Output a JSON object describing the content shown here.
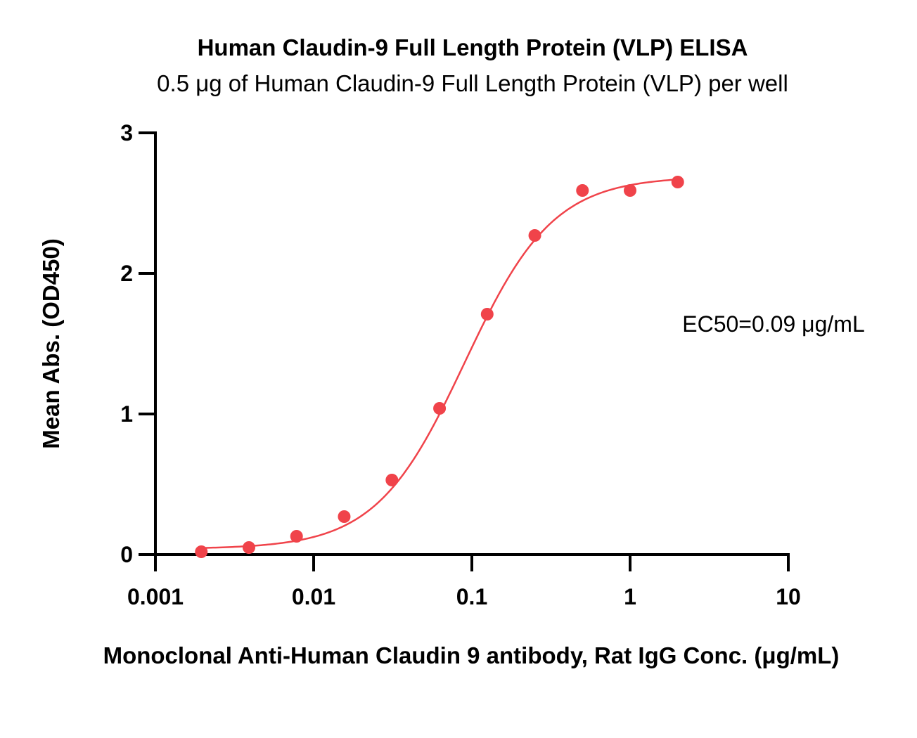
{
  "chart_data": {
    "type": "scatter",
    "title": "Human Claudin-9 Full Length Protein (VLP) ELISA",
    "subtitle": "0.5 μg of Human Claudin-9 Full Length Protein (VLP) per well",
    "xlabel": "Monoclonal Anti-Human Claudin 9 antibody, Rat IgG Conc. (μg/mL)",
    "ylabel": "Mean Abs. (OD450)",
    "xscale": "log",
    "xlim": [
      0.001,
      10
    ],
    "ylim": [
      0,
      3
    ],
    "xticks": [
      0.001,
      0.01,
      0.1,
      1,
      10
    ],
    "xtick_labels": [
      "0.001",
      "0.01",
      "0.1",
      "1",
      "10"
    ],
    "yticks": [
      0,
      1,
      2,
      3
    ],
    "ytick_labels": [
      "0",
      "1",
      "2",
      "3"
    ],
    "grid": false,
    "color": "#f0434a",
    "annotation": "EC50=0.09 μg/mL",
    "series": [
      {
        "x": [
          0.00195,
          0.0039,
          0.0078,
          0.0156,
          0.03125,
          0.0625,
          0.125,
          0.25,
          0.5,
          1,
          2
        ],
        "y": [
          0.02,
          0.05,
          0.13,
          0.27,
          0.53,
          1.04,
          1.71,
          2.27,
          2.59,
          2.59,
          2.65
        ]
      }
    ],
    "fit": {
      "model": "4PL",
      "bottom": 0.04,
      "top": 2.69,
      "ec50": 0.09,
      "hill": 1.55
    }
  }
}
